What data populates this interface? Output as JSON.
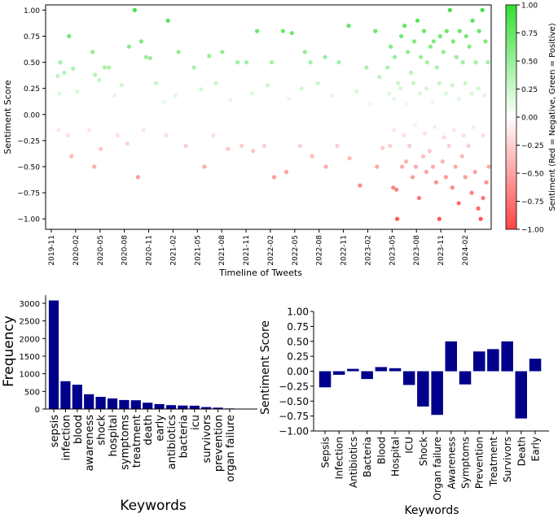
{
  "chart_data": [
    {
      "type": "scatter",
      "title": "",
      "xlabel": "Timeline of Tweets",
      "ylabel": "Sentiment Score",
      "x_ticks": [
        "2019-11",
        "2020-02",
        "2020-05",
        "2020-08",
        "2020-11",
        "2021-02",
        "2021-05",
        "2021-08",
        "2021-11",
        "2022-02",
        "2022-05",
        "2022-08",
        "2022-11",
        "2023-02",
        "2023-05",
        "2023-08",
        "2023-11",
        "2024-02"
      ],
      "xlim": [
        "2019-11",
        "2024-02"
      ],
      "ylim": [
        -1.1,
        1.05
      ],
      "y_ticks": [
        "1.00",
        "0.75",
        "0.50",
        "0.25",
        "0.00",
        "−0.25",
        "−0.50",
        "−0.75",
        "−1.00"
      ],
      "colorbar": {
        "label": "Sentiment (Red = Negative, Green = Positive)",
        "ticks": [
          "1.00",
          "0.75",
          "0.50",
          "0.25",
          "0.00",
          "−0.25",
          "−0.50",
          "−0.75",
          "−1.00"
        ],
        "range": [
          -1,
          1
        ],
        "negative_color": "#ff4444",
        "neutral_color": "#ffffff",
        "positive_color": "#33dd33"
      },
      "note": "Tweet-level sentiment points; density increases sharply from 2023-02 onwards. Points approximated.",
      "points": [
        [
          1.5,
          0.37
        ],
        [
          1.8,
          0.5
        ],
        [
          2.3,
          0.4
        ],
        [
          2.9,
          0.75
        ],
        [
          3.4,
          0.44
        ],
        [
          5.8,
          0.6
        ],
        [
          6.1,
          0.38
        ],
        [
          6.6,
          0.33
        ],
        [
          7.3,
          0.45
        ],
        [
          7.8,
          0.45
        ],
        [
          10.3,
          0.65
        ],
        [
          11.0,
          1.0
        ],
        [
          11.8,
          0.7
        ],
        [
          12.4,
          0.55
        ],
        [
          12.9,
          0.54
        ],
        [
          15.1,
          0.9
        ],
        [
          16.4,
          0.6
        ],
        [
          18.3,
          0.45
        ],
        [
          20.2,
          0.56
        ],
        [
          21.8,
          0.6
        ],
        [
          23.7,
          0.5
        ],
        [
          24.8,
          0.5
        ],
        [
          26.1,
          0.8
        ],
        [
          27.9,
          0.5
        ],
        [
          29.3,
          0.8
        ],
        [
          30.4,
          0.78
        ],
        [
          32.0,
          0.6
        ],
        [
          32.7,
          0.5
        ],
        [
          34.5,
          0.55
        ],
        [
          36.2,
          0.5
        ],
        [
          37.4,
          0.85
        ],
        [
          39.6,
          0.45
        ],
        [
          40.7,
          0.8
        ],
        [
          41.2,
          0.36
        ],
        [
          1.7,
          0.2
        ],
        [
          3.9,
          0.22
        ],
        [
          8.5,
          0.18
        ],
        [
          9.4,
          0.28
        ],
        [
          13.6,
          0.3
        ],
        [
          14.6,
          0.12
        ],
        [
          16.0,
          0.18
        ],
        [
          19.2,
          0.24
        ],
        [
          21.0,
          0.3
        ],
        [
          22.8,
          0.14
        ],
        [
          25.5,
          0.2
        ],
        [
          27.4,
          0.28
        ],
        [
          30.0,
          0.15
        ],
        [
          31.6,
          0.25
        ],
        [
          33.6,
          0.3
        ],
        [
          35.4,
          0.18
        ],
        [
          38.4,
          0.22
        ],
        [
          40.1,
          0.1
        ],
        [
          1.6,
          -0.15
        ],
        [
          2.8,
          -0.2
        ],
        [
          3.2,
          -0.4
        ],
        [
          5.4,
          -0.15
        ],
        [
          6.0,
          -0.5
        ],
        [
          6.8,
          -0.33
        ],
        [
          8.9,
          -0.2
        ],
        [
          10.1,
          -0.28
        ],
        [
          11.4,
          -0.6
        ],
        [
          12.1,
          -0.15
        ],
        [
          14.9,
          -0.2
        ],
        [
          17.3,
          -0.3
        ],
        [
          19.6,
          -0.5
        ],
        [
          20.7,
          -0.2
        ],
        [
          22.5,
          -0.33
        ],
        [
          24.2,
          -0.3
        ],
        [
          25.6,
          -0.35
        ],
        [
          27.0,
          -0.3
        ],
        [
          28.2,
          -0.6
        ],
        [
          29.7,
          -0.55
        ],
        [
          31.4,
          -0.3
        ],
        [
          32.9,
          -0.4
        ],
        [
          34.6,
          -0.5
        ],
        [
          36.0,
          -0.3
        ],
        [
          37.5,
          -0.42
        ],
        [
          38.8,
          -0.68
        ],
        [
          40.9,
          -0.5
        ],
        [
          41.6,
          -0.32
        ],
        [
          42.2,
          0.45
        ],
        [
          42.6,
          0.65
        ],
        [
          43.1,
          0.55
        ],
        [
          43.5,
          0.3
        ],
        [
          43.9,
          0.75
        ],
        [
          44.3,
          0.85
        ],
        [
          44.7,
          0.6
        ],
        [
          45.1,
          0.4
        ],
        [
          45.5,
          0.7
        ],
        [
          45.9,
          0.9
        ],
        [
          46.3,
          0.55
        ],
        [
          46.7,
          0.8
        ],
        [
          47.1,
          0.5
        ],
        [
          47.5,
          0.65
        ],
        [
          47.9,
          0.7
        ],
        [
          48.3,
          0.45
        ],
        [
          48.7,
          0.75
        ],
        [
          49.1,
          0.6
        ],
        [
          49.5,
          0.8
        ],
        [
          49.9,
          1.0
        ],
        [
          50.3,
          0.7
        ],
        [
          50.7,
          0.55
        ],
        [
          51.1,
          0.8
        ],
        [
          51.5,
          0.5
        ],
        [
          51.9,
          0.75
        ],
        [
          52.3,
          0.65
        ],
        [
          52.7,
          0.9
        ],
        [
          53.1,
          0.5
        ],
        [
          53.5,
          0.8
        ],
        [
          53.9,
          1.0
        ],
        [
          54.3,
          0.7
        ],
        [
          54.6,
          0.5
        ],
        [
          42.4,
          0.2
        ],
        [
          43.0,
          0.15
        ],
        [
          43.8,
          0.25
        ],
        [
          44.6,
          0.1
        ],
        [
          45.4,
          0.3
        ],
        [
          46.2,
          0.2
        ],
        [
          47.0,
          0.25
        ],
        [
          47.8,
          0.12
        ],
        [
          48.6,
          0.3
        ],
        [
          49.4,
          0.2
        ],
        [
          50.2,
          0.28
        ],
        [
          51.0,
          0.15
        ],
        [
          51.8,
          0.3
        ],
        [
          52.6,
          0.2
        ],
        [
          53.4,
          0.25
        ],
        [
          54.2,
          0.18
        ],
        [
          42.5,
          -0.3
        ],
        [
          42.9,
          -0.7
        ],
        [
          43.3,
          -0.72
        ],
        [
          43.4,
          -1.0
        ],
        [
          44.0,
          -0.5
        ],
        [
          44.5,
          -0.45
        ],
        [
          44.9,
          -0.3
        ],
        [
          45.3,
          -0.6
        ],
        [
          45.7,
          -0.5
        ],
        [
          46.1,
          -0.8
        ],
        [
          46.6,
          -0.4
        ],
        [
          47.0,
          -0.55
        ],
        [
          47.4,
          -0.35
        ],
        [
          47.8,
          -0.5
        ],
        [
          48.2,
          -0.65
        ],
        [
          48.6,
          -1.0
        ],
        [
          49.0,
          -0.45
        ],
        [
          49.4,
          -0.6
        ],
        [
          49.8,
          -0.3
        ],
        [
          50.2,
          -0.7
        ],
        [
          50.6,
          -0.5
        ],
        [
          51.0,
          -0.85
        ],
        [
          51.4,
          -0.4
        ],
        [
          51.8,
          -0.6
        ],
        [
          52.2,
          -0.3
        ],
        [
          52.6,
          -0.75
        ],
        [
          53.0,
          -0.55
        ],
        [
          53.4,
          -0.9
        ],
        [
          53.7,
          -1.0
        ],
        [
          54.0,
          -0.8
        ],
        [
          54.4,
          -0.65
        ],
        [
          54.7,
          -0.5
        ],
        [
          43.0,
          -0.15
        ],
        [
          44.2,
          -0.2
        ],
        [
          45.6,
          -0.1
        ],
        [
          46.8,
          -0.18
        ],
        [
          48.0,
          -0.12
        ],
        [
          49.2,
          -0.22
        ],
        [
          50.4,
          -0.15
        ],
        [
          51.6,
          -0.2
        ],
        [
          52.8,
          -0.12
        ],
        [
          54.0,
          -0.2
        ]
      ]
    },
    {
      "type": "bar",
      "title": "",
      "xlabel": "Keywords",
      "ylabel": "Frequency",
      "categories": [
        "sepsis",
        "infection",
        "blood",
        "awareness",
        "shock",
        "hospital",
        "symptoms",
        "treatment",
        "death",
        "early",
        "antibiotics",
        "bacteria",
        "icu",
        "survivors",
        "prevention",
        "organ failure"
      ],
      "values": [
        3080,
        790,
        690,
        420,
        345,
        300,
        255,
        250,
        180,
        140,
        110,
        100,
        95,
        55,
        40,
        15
      ],
      "ylim": [
        0,
        3230
      ],
      "y_ticks": [
        "0",
        "500",
        "1000",
        "1500",
        "2000",
        "2500",
        "3000"
      ],
      "bar_color": "#00008b"
    },
    {
      "type": "bar",
      "title": "",
      "xlabel": "Keywords",
      "ylabel": "Sentiment Score",
      "categories": [
        "Sepsis",
        "Infection",
        "Antibiotics",
        "Bacteria",
        "Blood",
        "Hospital",
        "ICU",
        "Shock",
        "Organ failure",
        "Awareness",
        "Symptoms",
        "Prevention",
        "Treatment",
        "Survivors",
        "Death",
        "Early"
      ],
      "values": [
        -0.27,
        -0.06,
        0.04,
        -0.13,
        0.07,
        0.05,
        -0.23,
        -0.59,
        -0.73,
        0.5,
        -0.22,
        0.33,
        0.37,
        0.5,
        -0.79,
        0.21
      ],
      "ylim": [
        -1.0,
        1.0
      ],
      "y_ticks": [
        "1.00",
        "0.75",
        "0.50",
        "0.25",
        "0.00",
        "−0.25",
        "−0.50",
        "−0.75",
        "−1.00"
      ],
      "bar_color": "#00008b"
    }
  ]
}
